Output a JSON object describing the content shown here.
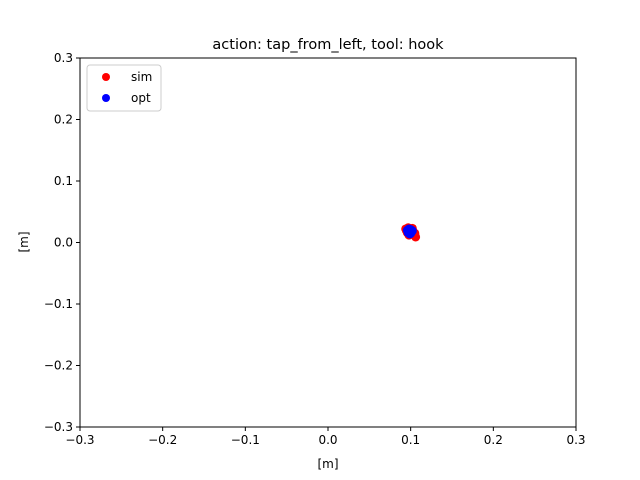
{
  "chart_data": {
    "type": "scatter",
    "title": "action: tap_from_left, tool: hook",
    "xlabel": "[m]",
    "ylabel": "[m]",
    "xlim": [
      -0.3,
      0.3
    ],
    "ylim": [
      -0.3,
      0.3
    ],
    "xticks": [
      "−0.3",
      "−0.2",
      "−0.1",
      "0.0",
      "0.1",
      "0.2",
      "0.3"
    ],
    "yticks": [
      "−0.3",
      "−0.2",
      "−0.1",
      "0.0",
      "0.1",
      "0.2",
      "0.3"
    ],
    "xtick_values": [
      -0.3,
      -0.2,
      -0.1,
      0.0,
      0.1,
      0.2,
      0.3
    ],
    "ytick_values": [
      -0.3,
      -0.2,
      -0.1,
      0.0,
      0.1,
      0.2,
      0.3
    ],
    "grid": false,
    "legend_position": "top-left",
    "series": [
      {
        "name": "sim",
        "color": "#ff0000",
        "x": [
          0.094,
          0.097,
          0.1,
          0.103,
          0.106,
          0.098,
          0.101,
          0.096,
          0.104,
          0.099,
          0.102,
          0.095,
          0.105
        ],
        "y": [
          0.022,
          0.024,
          0.021,
          0.018,
          0.009,
          0.012,
          0.014,
          0.016,
          0.013,
          0.02,
          0.023,
          0.019,
          0.015
        ]
      },
      {
        "name": "opt",
        "color": "#0000ff",
        "x": [
          0.096,
          0.098,
          0.1,
          0.102,
          0.097,
          0.099,
          0.101,
          0.1,
          0.098
        ],
        "y": [
          0.02,
          0.022,
          0.021,
          0.019,
          0.016,
          0.014,
          0.017,
          0.015,
          0.018
        ]
      }
    ]
  }
}
